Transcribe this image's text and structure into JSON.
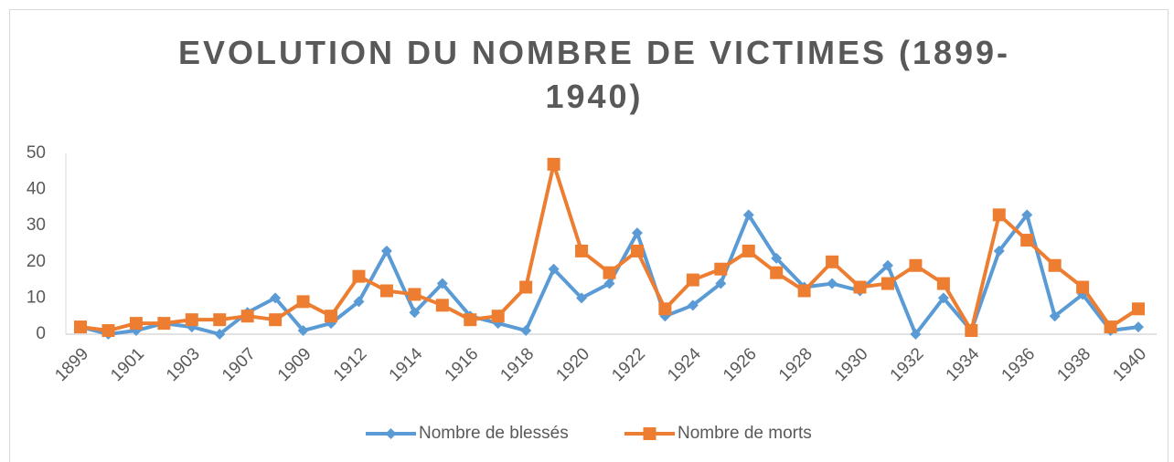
{
  "chart_data": {
    "type": "line",
    "title": "EVOLUTION DU NOMBRE DE VICTIMES (1899-1940)",
    "categories": [
      "1899",
      null,
      "1901",
      null,
      "1903",
      null,
      "1907",
      null,
      "1909",
      null,
      "1912",
      null,
      "1914",
      null,
      "1916",
      null,
      "1918",
      null,
      "1920",
      null,
      "1922",
      null,
      "1924",
      null,
      "1926",
      null,
      "1928",
      null,
      "1930",
      null,
      "1932",
      null,
      "1934",
      null,
      "1936",
      null,
      "1938",
      null,
      "1940"
    ],
    "series": [
      {
        "name": "Nombre de blessés",
        "color": "#5b9bd5",
        "marker": "diamond",
        "values": [
          2,
          0,
          1,
          3,
          2,
          0,
          6,
          10,
          1,
          3,
          9,
          23,
          6,
          14,
          5,
          3,
          1,
          18,
          10,
          14,
          28,
          5,
          8,
          14,
          33,
          21,
          13,
          14,
          12,
          19,
          0,
          10,
          1,
          23,
          33,
          5,
          11,
          1,
          2
        ]
      },
      {
        "name": "Nombre de morts",
        "color": "#ed7d31",
        "marker": "square",
        "values": [
          2,
          1,
          3,
          3,
          4,
          4,
          5,
          4,
          9,
          5,
          16,
          12,
          11,
          8,
          4,
          5,
          13,
          47,
          23,
          17,
          23,
          7,
          15,
          18,
          23,
          17,
          12,
          20,
          13,
          14,
          19,
          14,
          1,
          33,
          26,
          19,
          13,
          2,
          7
        ]
      }
    ],
    "ylim": [
      0,
      50
    ],
    "yticks": [
      0,
      10,
      20,
      30,
      40,
      50
    ],
    "grid": false,
    "legend": "bottom"
  }
}
